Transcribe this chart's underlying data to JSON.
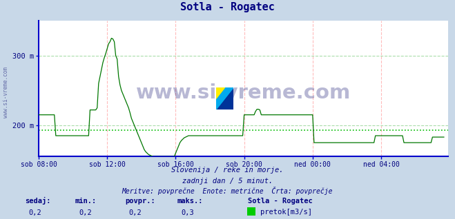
{
  "title": "Sotla - Rogatec",
  "title_color": "#000080",
  "title_fontsize": 11,
  "bg_color": "#c8d8e8",
  "plot_bg_color": "#ffffff",
  "x_labels": [
    "sob 08:00",
    "sob 12:00",
    "sob 16:00",
    "sob 20:00",
    "ned 00:00",
    "ned 04:00"
  ],
  "total_points": 288,
  "ylim_min": 155,
  "ylim_max": 350,
  "yticks": [
    200,
    300
  ],
  "ytick_labels": [
    "200 m",
    "300 m"
  ],
  "avg_line_y": 193,
  "avg_line_color": "#00bb00",
  "line_color": "#007700",
  "axis_color_left": "#0000cc",
  "axis_color_bottom": "#0000cc",
  "axis_color_arrow": "#cc0000",
  "vgrid_color": "#ffbbbb",
  "hgrid_color": "#aaddaa",
  "watermark_text": "www.si-vreme.com",
  "watermark_color": "#000066",
  "sub_text1": "Slovenija / reke in morje.",
  "sub_text2": "zadnji dan / 5 minut.",
  "sub_text3": "Meritve: povprečne  Enote: metrične  Črta: povprečje",
  "text_color": "#000080",
  "legend_title": "Sotla - Rogatec",
  "legend_label": "pretok[m3/s]",
  "legend_color": "#00cc00",
  "stat_labels": [
    "sedaj:",
    "min.:",
    "povpr.:",
    "maks.:"
  ],
  "stat_values": [
    "0,2",
    "0,2",
    "0,2",
    "0,3"
  ],
  "side_label": "www.si-vreme.com",
  "data_y": [
    215,
    215,
    215,
    215,
    215,
    215,
    215,
    215,
    215,
    215,
    215,
    215,
    185,
    185,
    185,
    185,
    185,
    185,
    185,
    185,
    185,
    185,
    185,
    185,
    185,
    185,
    185,
    185,
    185,
    185,
    185,
    185,
    185,
    185,
    185,
    185,
    222,
    222,
    222,
    222,
    222,
    225,
    260,
    270,
    280,
    290,
    297,
    303,
    310,
    317,
    320,
    325,
    324,
    320,
    300,
    295,
    270,
    258,
    250,
    245,
    240,
    235,
    230,
    225,
    218,
    210,
    205,
    200,
    195,
    190,
    185,
    180,
    175,
    170,
    165,
    162,
    160,
    158,
    157,
    156,
    155,
    155,
    155,
    155,
    155,
    155,
    155,
    155,
    155,
    155,
    155,
    155,
    155,
    155,
    155,
    155,
    160,
    165,
    170,
    175,
    178,
    180,
    182,
    183,
    184,
    185,
    185,
    185,
    185,
    185,
    185,
    185,
    185,
    185,
    185,
    185,
    185,
    185,
    185,
    185,
    185,
    185,
    185,
    185,
    185,
    185,
    185,
    185,
    185,
    185,
    185,
    185,
    185,
    185,
    185,
    185,
    185,
    185,
    185,
    185,
    185,
    185,
    185,
    185,
    215,
    215,
    215,
    215,
    215,
    215,
    215,
    215,
    220,
    223,
    223,
    222,
    215,
    215,
    215,
    215,
    215,
    215,
    215,
    215,
    215,
    215,
    215,
    215,
    215,
    215,
    215,
    215,
    215,
    215,
    215,
    215,
    215,
    215,
    215,
    215,
    215,
    215,
    215,
    215,
    215,
    215,
    215,
    215,
    215,
    215,
    215,
    215,
    215,
    175,
    175,
    175,
    175,
    175,
    175,
    175,
    175,
    175,
    175,
    175,
    175,
    175,
    175,
    175,
    175,
    175,
    175,
    175,
    175,
    175,
    175,
    175,
    175,
    175,
    175,
    175,
    175,
    175,
    175,
    175,
    175,
    175,
    175,
    175,
    175,
    175,
    175,
    175,
    175,
    175,
    175,
    175,
    185,
    185,
    185,
    185,
    185,
    185,
    185,
    185,
    185,
    185,
    185,
    185,
    185,
    185,
    185,
    185,
    185,
    185,
    185,
    185,
    175,
    175,
    175,
    175,
    175,
    175,
    175,
    175,
    175,
    175,
    175,
    175,
    175,
    175,
    175,
    175,
    175,
    175,
    175,
    175,
    183,
    183,
    183,
    183,
    183,
    183,
    183,
    183,
    183
  ]
}
